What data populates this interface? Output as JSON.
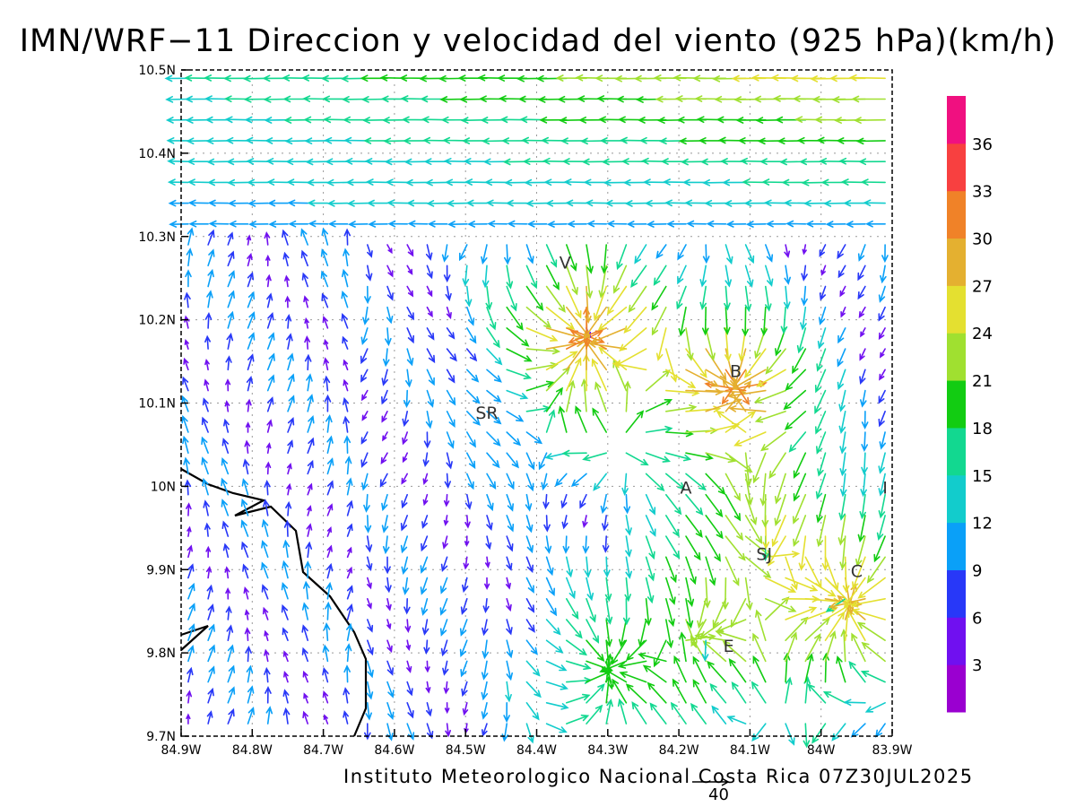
{
  "title": "IMN/WRF−11 Direccion y velocidad del viento (925 hPa)(km/h)",
  "footer": "Instituto Meteorologico Nacional Costa Rica 07Z30JUL2025",
  "reference_vector": {
    "value": "40"
  },
  "colorbar": {
    "labels": [
      "3",
      "6",
      "9",
      "12",
      "15",
      "18",
      "21",
      "24",
      "27",
      "30",
      "33",
      "36"
    ],
    "colors": [
      "#9a00d0",
      "#7010f0",
      "#2838f8",
      "#0aa0f8",
      "#12cccc",
      "#12d890",
      "#12cc12",
      "#a0e030",
      "#e4e030",
      "#e4b030",
      "#f08228",
      "#f84040",
      "#f01080"
    ]
  },
  "map": {
    "lon_range": [
      -84.9,
      -83.9
    ],
    "lat_range": [
      9.7,
      10.5
    ],
    "lon_ticks": [
      "84.9W",
      "84.8W",
      "84.7W",
      "84.6W",
      "84.5W",
      "84.4W",
      "84.3W",
      "84.2W",
      "84.1W",
      "84W",
      "83.9W"
    ],
    "lat_ticks": [
      "10.5N",
      "10.4N",
      "10.3N",
      "10.2N",
      "10.1N",
      "10N",
      "9.9N",
      "9.8N",
      "9.7N"
    ],
    "station_labels": [
      {
        "text": "V",
        "lon": -84.36,
        "lat": 10.27
      },
      {
        "text": "B",
        "lon": -84.12,
        "lat": 10.14
      },
      {
        "text": "SR",
        "lon": -84.47,
        "lat": 10.09
      },
      {
        "text": "A",
        "lon": -84.19,
        "lat": 10.0
      },
      {
        "text": "I",
        "lon": -83.91,
        "lat": 10.0
      },
      {
        "text": "SJ",
        "lon": -84.08,
        "lat": 9.92
      },
      {
        "text": "C",
        "lon": -83.95,
        "lat": 9.9
      },
      {
        "text": "E",
        "lon": -84.13,
        "lat": 9.81
      }
    ]
  }
}
